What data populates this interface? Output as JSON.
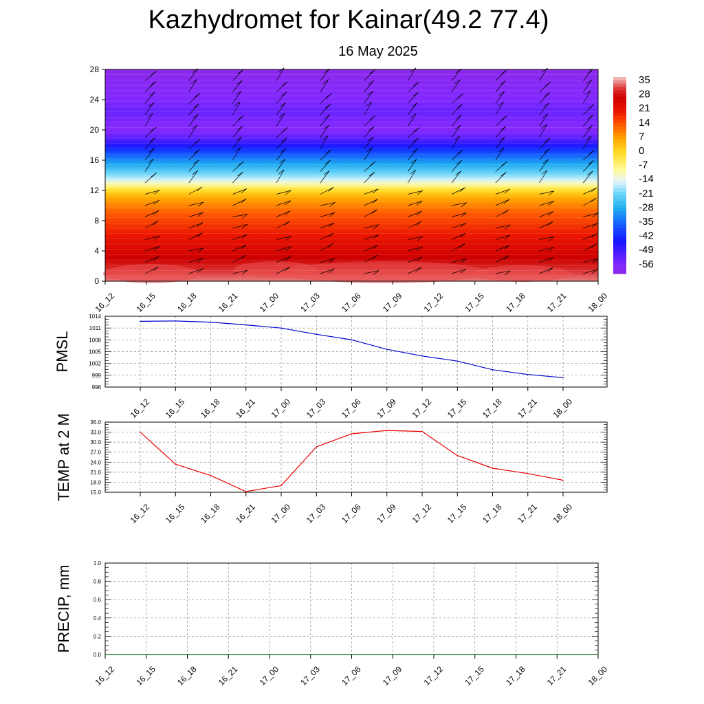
{
  "header": {
    "title": "Kazhydromet for Kainar(49.2 77.4)",
    "date": "16 May 2025"
  },
  "chart_data": [
    {
      "id": "cross_section",
      "type": "heatmap",
      "title": "",
      "xlabel": "",
      "ylabel": "",
      "x_ticks": [
        "16_12",
        "16_15",
        "16_18",
        "16_21",
        "17_00",
        "17_03",
        "17_06",
        "17_09",
        "17_12",
        "17_15",
        "17_18",
        "17_21",
        "18_00"
      ],
      "y_ticks": [
        "0",
        "4",
        "8",
        "12",
        "16",
        "20",
        "24",
        "28"
      ],
      "ylim": [
        0,
        28
      ],
      "colorbar_labels": [
        "35",
        "28",
        "21",
        "14",
        "7",
        "0",
        "-7",
        "-14",
        "-21",
        "-28",
        "-35",
        "-42",
        "-49",
        "-56"
      ],
      "colorbar_range": [
        -60,
        38
      ],
      "profile_description": "temperature vs height: ~35 near surface, ~0 at 12, ~-56 at 20, ~-60 above 24",
      "profile": [
        [
          0,
          35
        ],
        [
          3,
          28
        ],
        [
          6,
          21
        ],
        [
          9,
          14
        ],
        [
          11,
          7
        ],
        [
          12,
          0
        ],
        [
          12.6,
          -7
        ],
        [
          13.3,
          -14
        ],
        [
          14.3,
          -21
        ],
        [
          15.5,
          -28
        ],
        [
          16.6,
          -35
        ],
        [
          17.6,
          -42
        ],
        [
          18.5,
          -49
        ],
        [
          20,
          -57
        ],
        [
          22.5,
          -53
        ],
        [
          24,
          -56
        ],
        [
          28,
          -60
        ]
      ],
      "overlay": "wind barbs",
      "colors": {
        "hot": "#cc0000",
        "zero": "#ffe040",
        "cold": "#1010ff",
        "top": "#8a2be2"
      }
    },
    {
      "id": "pmsl",
      "type": "line",
      "ylabel": "PMSL",
      "x_ticks": [
        "16_12",
        "16_15",
        "16_18",
        "16_21",
        "17_00",
        "17_03",
        "17_06",
        "17_09",
        "17_12",
        "17_15",
        "17_18",
        "17_21",
        "18_00"
      ],
      "y_ticks": [
        "996",
        "999",
        "1002",
        "1005",
        "1008",
        "1011",
        "1014"
      ],
      "ylim": [
        996,
        1014
      ],
      "values": [
        1012.7,
        1012.8,
        1012.5,
        1011.8,
        1011.0,
        1009.4,
        1008.0,
        1005.6,
        1003.9,
        1002.6,
        1000.4,
        999.2,
        998.4
      ],
      "color": "#0000cc"
    },
    {
      "id": "temp2m",
      "type": "line",
      "ylabel": "TEMP at 2 M",
      "x_ticks": [
        "16_12",
        "16_15",
        "16_18",
        "16_21",
        "17_00",
        "17_03",
        "17_06",
        "17_09",
        "17_12",
        "17_15",
        "17_18",
        "17_21",
        "18_00"
      ],
      "y_ticks": [
        "15.0",
        "18.0",
        "21.0",
        "24.0",
        "27.0",
        "30.0",
        "33.0",
        "36.0"
      ],
      "ylim": [
        15,
        36
      ],
      "values": [
        33.0,
        23.4,
        20.0,
        15.2,
        17.0,
        28.6,
        32.5,
        33.5,
        33.2,
        26.0,
        22.2,
        20.6,
        18.6
      ],
      "color": "#ee0000"
    },
    {
      "id": "precip",
      "type": "line",
      "ylabel": "PRECIP, mm",
      "x_ticks": [
        "16_12",
        "16_15",
        "16_18",
        "16_21",
        "17_00",
        "17_03",
        "17_06",
        "17_09",
        "17_12",
        "17_15",
        "17_18",
        "17_21",
        "18_00"
      ],
      "y_ticks": [
        "0.0",
        "0.2",
        "0.4",
        "0.6",
        "0.8",
        "1.0"
      ],
      "ylim": [
        0,
        1
      ],
      "values": [
        0,
        0,
        0,
        0,
        0,
        0,
        0,
        0,
        0,
        0,
        0,
        0,
        0
      ],
      "color": "#006400"
    }
  ]
}
